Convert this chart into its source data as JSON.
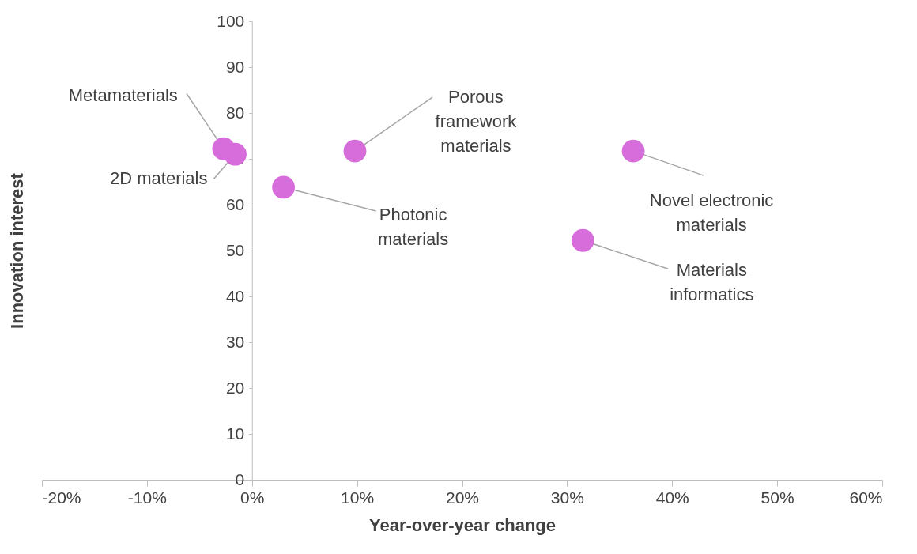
{
  "chart_data": {
    "type": "scatter",
    "xlabel": "Year-over-year change",
    "ylabel": "Innovation interest",
    "x": [
      -2.7,
      -1.6,
      3.0,
      9.8,
      36.3,
      31.5
    ],
    "series": [
      {
        "color": "#d66ddb",
        "values": [
          72.2,
          71.0,
          63.8,
          71.7,
          71.7,
          52.2
        ]
      }
    ],
    "marker": "circle",
    "grid": false,
    "xlim": [
      -20,
      60
    ],
    "ylim": [
      0,
      100
    ],
    "xticks": [
      {
        "value": -20,
        "label": "-20%"
      },
      {
        "value": -10,
        "label": "-10%"
      },
      {
        "value": 0,
        "label": "0%"
      },
      {
        "value": 10,
        "label": "10%"
      },
      {
        "value": 20,
        "label": "20%"
      },
      {
        "value": 30,
        "label": "30%"
      },
      {
        "value": 40,
        "label": "40%"
      },
      {
        "value": 50,
        "label": "50%"
      },
      {
        "value": 60,
        "label": "60%"
      }
    ],
    "yticks": [
      0,
      10,
      20,
      30,
      40,
      50,
      60,
      70,
      80,
      90,
      100
    ],
    "annotations": [
      {
        "text": "Metamaterials",
        "x": -2.7,
        "y": 72.2
      },
      {
        "text": "2D materials",
        "x": -1.6,
        "y": 71.0
      },
      {
        "text": "Photonic\nmaterials",
        "x": 3.0,
        "y": 63.8
      },
      {
        "text": "Porous\nframework\nmaterials",
        "x": 9.8,
        "y": 71.7
      },
      {
        "text": "Novel electronic\nmaterials",
        "x": 36.3,
        "y": 71.7
      },
      {
        "text": "Materials\ninformatics",
        "x": 31.5,
        "y": 52.2
      }
    ]
  }
}
